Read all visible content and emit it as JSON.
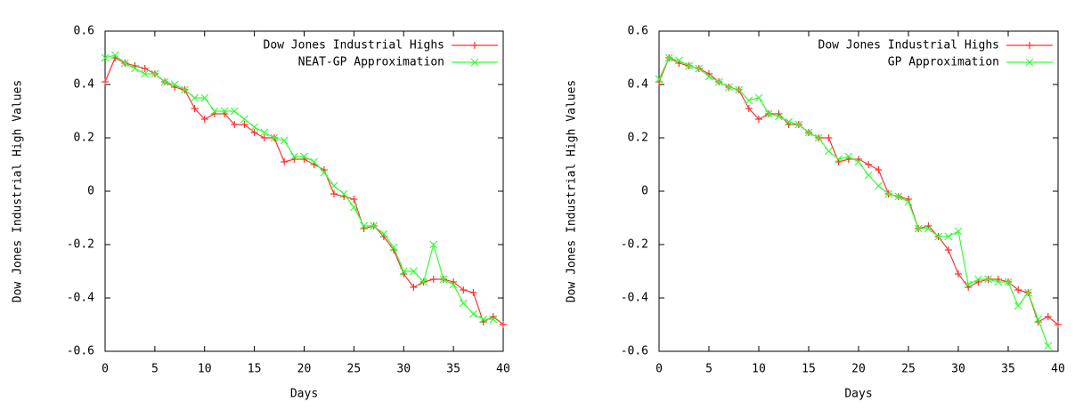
{
  "chart_data": [
    {
      "type": "line",
      "xlabel": "Days",
      "ylabel": "Dow Jones Industrial High Values",
      "x": [
        0,
        1,
        2,
        3,
        4,
        5,
        6,
        7,
        8,
        9,
        10,
        11,
        12,
        13,
        14,
        15,
        16,
        17,
        18,
        19,
        20,
        21,
        22,
        23,
        24,
        25,
        26,
        27,
        28,
        29,
        30,
        31,
        32,
        33,
        34,
        35,
        36,
        37,
        38,
        39,
        40
      ],
      "series": [
        {
          "name": "Dow Jones Industrial Highs",
          "color": "#ff3333",
          "marker": "+",
          "values": [
            0.41,
            0.5,
            0.48,
            0.47,
            0.46,
            0.44,
            0.41,
            0.39,
            0.38,
            0.31,
            0.27,
            0.29,
            0.29,
            0.25,
            0.25,
            0.22,
            0.2,
            0.2,
            0.11,
            0.12,
            0.12,
            0.1,
            0.08,
            -0.01,
            -0.02,
            -0.03,
            -0.14,
            -0.13,
            -0.17,
            -0.22,
            -0.31,
            -0.36,
            -0.34,
            -0.33,
            -0.33,
            -0.34,
            -0.37,
            -0.38,
            -0.49,
            -0.47,
            -0.5
          ]
        },
        {
          "name": "NEAT-GP Approximation",
          "color": "#33ff33",
          "marker": "x",
          "values": [
            0.5,
            0.51,
            0.48,
            0.46,
            0.44,
            0.44,
            0.41,
            0.4,
            0.38,
            0.35,
            0.35,
            0.3,
            0.3,
            0.3,
            0.27,
            0.24,
            0.22,
            0.2,
            0.19,
            0.13,
            0.13,
            0.11,
            0.07,
            0.02,
            -0.01,
            -0.06,
            -0.13,
            -0.13,
            -0.16,
            -0.21,
            -0.3,
            -0.3,
            -0.34,
            -0.2,
            -0.33,
            -0.35,
            -0.42,
            -0.46,
            -0.48,
            -0.48,
            null
          ]
        }
      ],
      "xlim": [
        0,
        40
      ],
      "xticks": [
        0,
        5,
        10,
        15,
        20,
        25,
        30,
        35,
        40
      ],
      "ylim": [
        -0.6,
        0.6
      ],
      "yticks": [
        -0.6,
        -0.4,
        -0.2,
        0,
        0.2,
        0.4,
        0.6
      ],
      "legend": "top-right"
    },
    {
      "type": "line",
      "xlabel": "Days",
      "ylabel": "Dow Jones Industrial High Values",
      "x": [
        0,
        1,
        2,
        3,
        4,
        5,
        6,
        7,
        8,
        9,
        10,
        11,
        12,
        13,
        14,
        15,
        16,
        17,
        18,
        19,
        20,
        21,
        22,
        23,
        24,
        25,
        26,
        27,
        28,
        29,
        30,
        31,
        32,
        33,
        34,
        35,
        36,
        37,
        38,
        39,
        40
      ],
      "series": [
        {
          "name": "Dow Jones Industrial Highs",
          "color": "#ff3333",
          "marker": "+",
          "values": [
            0.41,
            0.5,
            0.48,
            0.47,
            0.46,
            0.44,
            0.41,
            0.39,
            0.38,
            0.31,
            0.27,
            0.29,
            0.29,
            0.25,
            0.25,
            0.22,
            0.2,
            0.2,
            0.11,
            0.12,
            0.12,
            0.1,
            0.08,
            -0.01,
            -0.02,
            -0.03,
            -0.14,
            -0.13,
            -0.17,
            -0.22,
            -0.31,
            -0.36,
            -0.34,
            -0.33,
            -0.33,
            -0.34,
            -0.37,
            -0.38,
            -0.49,
            -0.47,
            -0.5
          ]
        },
        {
          "name": "GP Approximation",
          "color": "#33ff33",
          "marker": "x",
          "values": [
            0.42,
            0.5,
            0.49,
            0.47,
            0.46,
            0.43,
            0.41,
            0.39,
            0.38,
            0.34,
            0.35,
            0.29,
            0.28,
            0.26,
            0.25,
            0.22,
            0.2,
            0.15,
            0.12,
            0.13,
            0.11,
            0.06,
            0.02,
            -0.01,
            -0.02,
            -0.04,
            -0.14,
            -0.14,
            -0.17,
            -0.17,
            -0.15,
            -0.35,
            -0.33,
            -0.33,
            -0.34,
            -0.34,
            -0.43,
            -0.38,
            -0.48,
            -0.58,
            null
          ]
        }
      ],
      "xlim": [
        0,
        40
      ],
      "xticks": [
        0,
        5,
        10,
        15,
        20,
        25,
        30,
        35,
        40
      ],
      "ylim": [
        -0.6,
        0.6
      ],
      "yticks": [
        -0.6,
        -0.4,
        -0.2,
        0,
        0.2,
        0.4,
        0.6
      ],
      "legend": "top-right"
    }
  ]
}
